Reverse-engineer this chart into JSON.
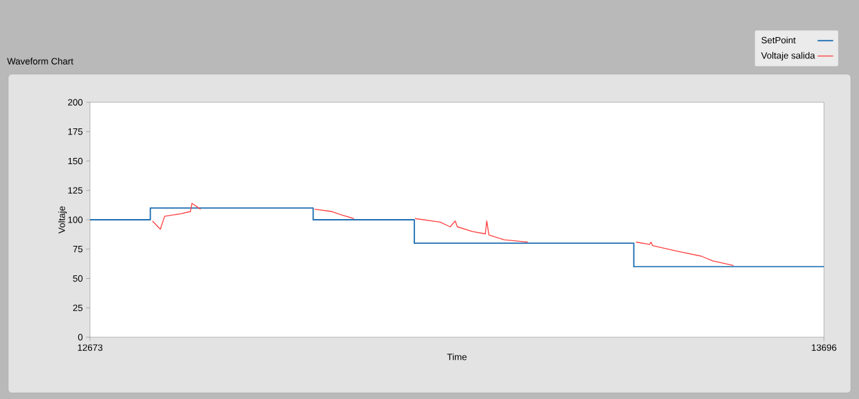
{
  "chart_data": {
    "type": "line",
    "title": "Waveform Chart",
    "xlabel": "Time",
    "ylabel": "Voltaje",
    "xlim": [
      12673,
      13696
    ],
    "xticks": [
      12673,
      13696
    ],
    "ylim": [
      0,
      200
    ],
    "yticks": [
      0,
      25,
      50,
      75,
      100,
      125,
      150,
      175,
      200
    ],
    "legend": "top right",
    "series": [
      {
        "name": "SetPoint",
        "color": "#1f6fb2",
        "x": [
          12673,
          12757,
          12757,
          12984,
          12984,
          13125,
          13125,
          13431,
          13431,
          13696
        ],
        "values": [
          100,
          100,
          110,
          110,
          100,
          100,
          80,
          80,
          60,
          60
        ]
      },
      {
        "name": "Voltaje salida",
        "color": "#ff4040",
        "x": [
          12760,
          12771,
          12777,
          12799,
          12813,
          12815,
          12827,
          12900,
          12986,
          13010,
          13024,
          13041,
          13080,
          13126,
          13161,
          13175,
          13182,
          13185,
          13206,
          13224,
          13226,
          13229,
          13250,
          13283,
          13350,
          13434,
          13453,
          13455,
          13457,
          13493,
          13525,
          13541,
          13570
        ],
        "values": [
          99,
          92,
          103,
          105,
          107,
          114,
          109,
          null,
          109,
          107,
          104,
          101,
          null,
          101,
          98,
          94,
          99,
          94,
          90,
          88,
          99,
          87,
          83,
          81,
          null,
          81,
          79,
          81,
          78,
          73,
          69,
          65,
          61
        ]
      }
    ]
  }
}
